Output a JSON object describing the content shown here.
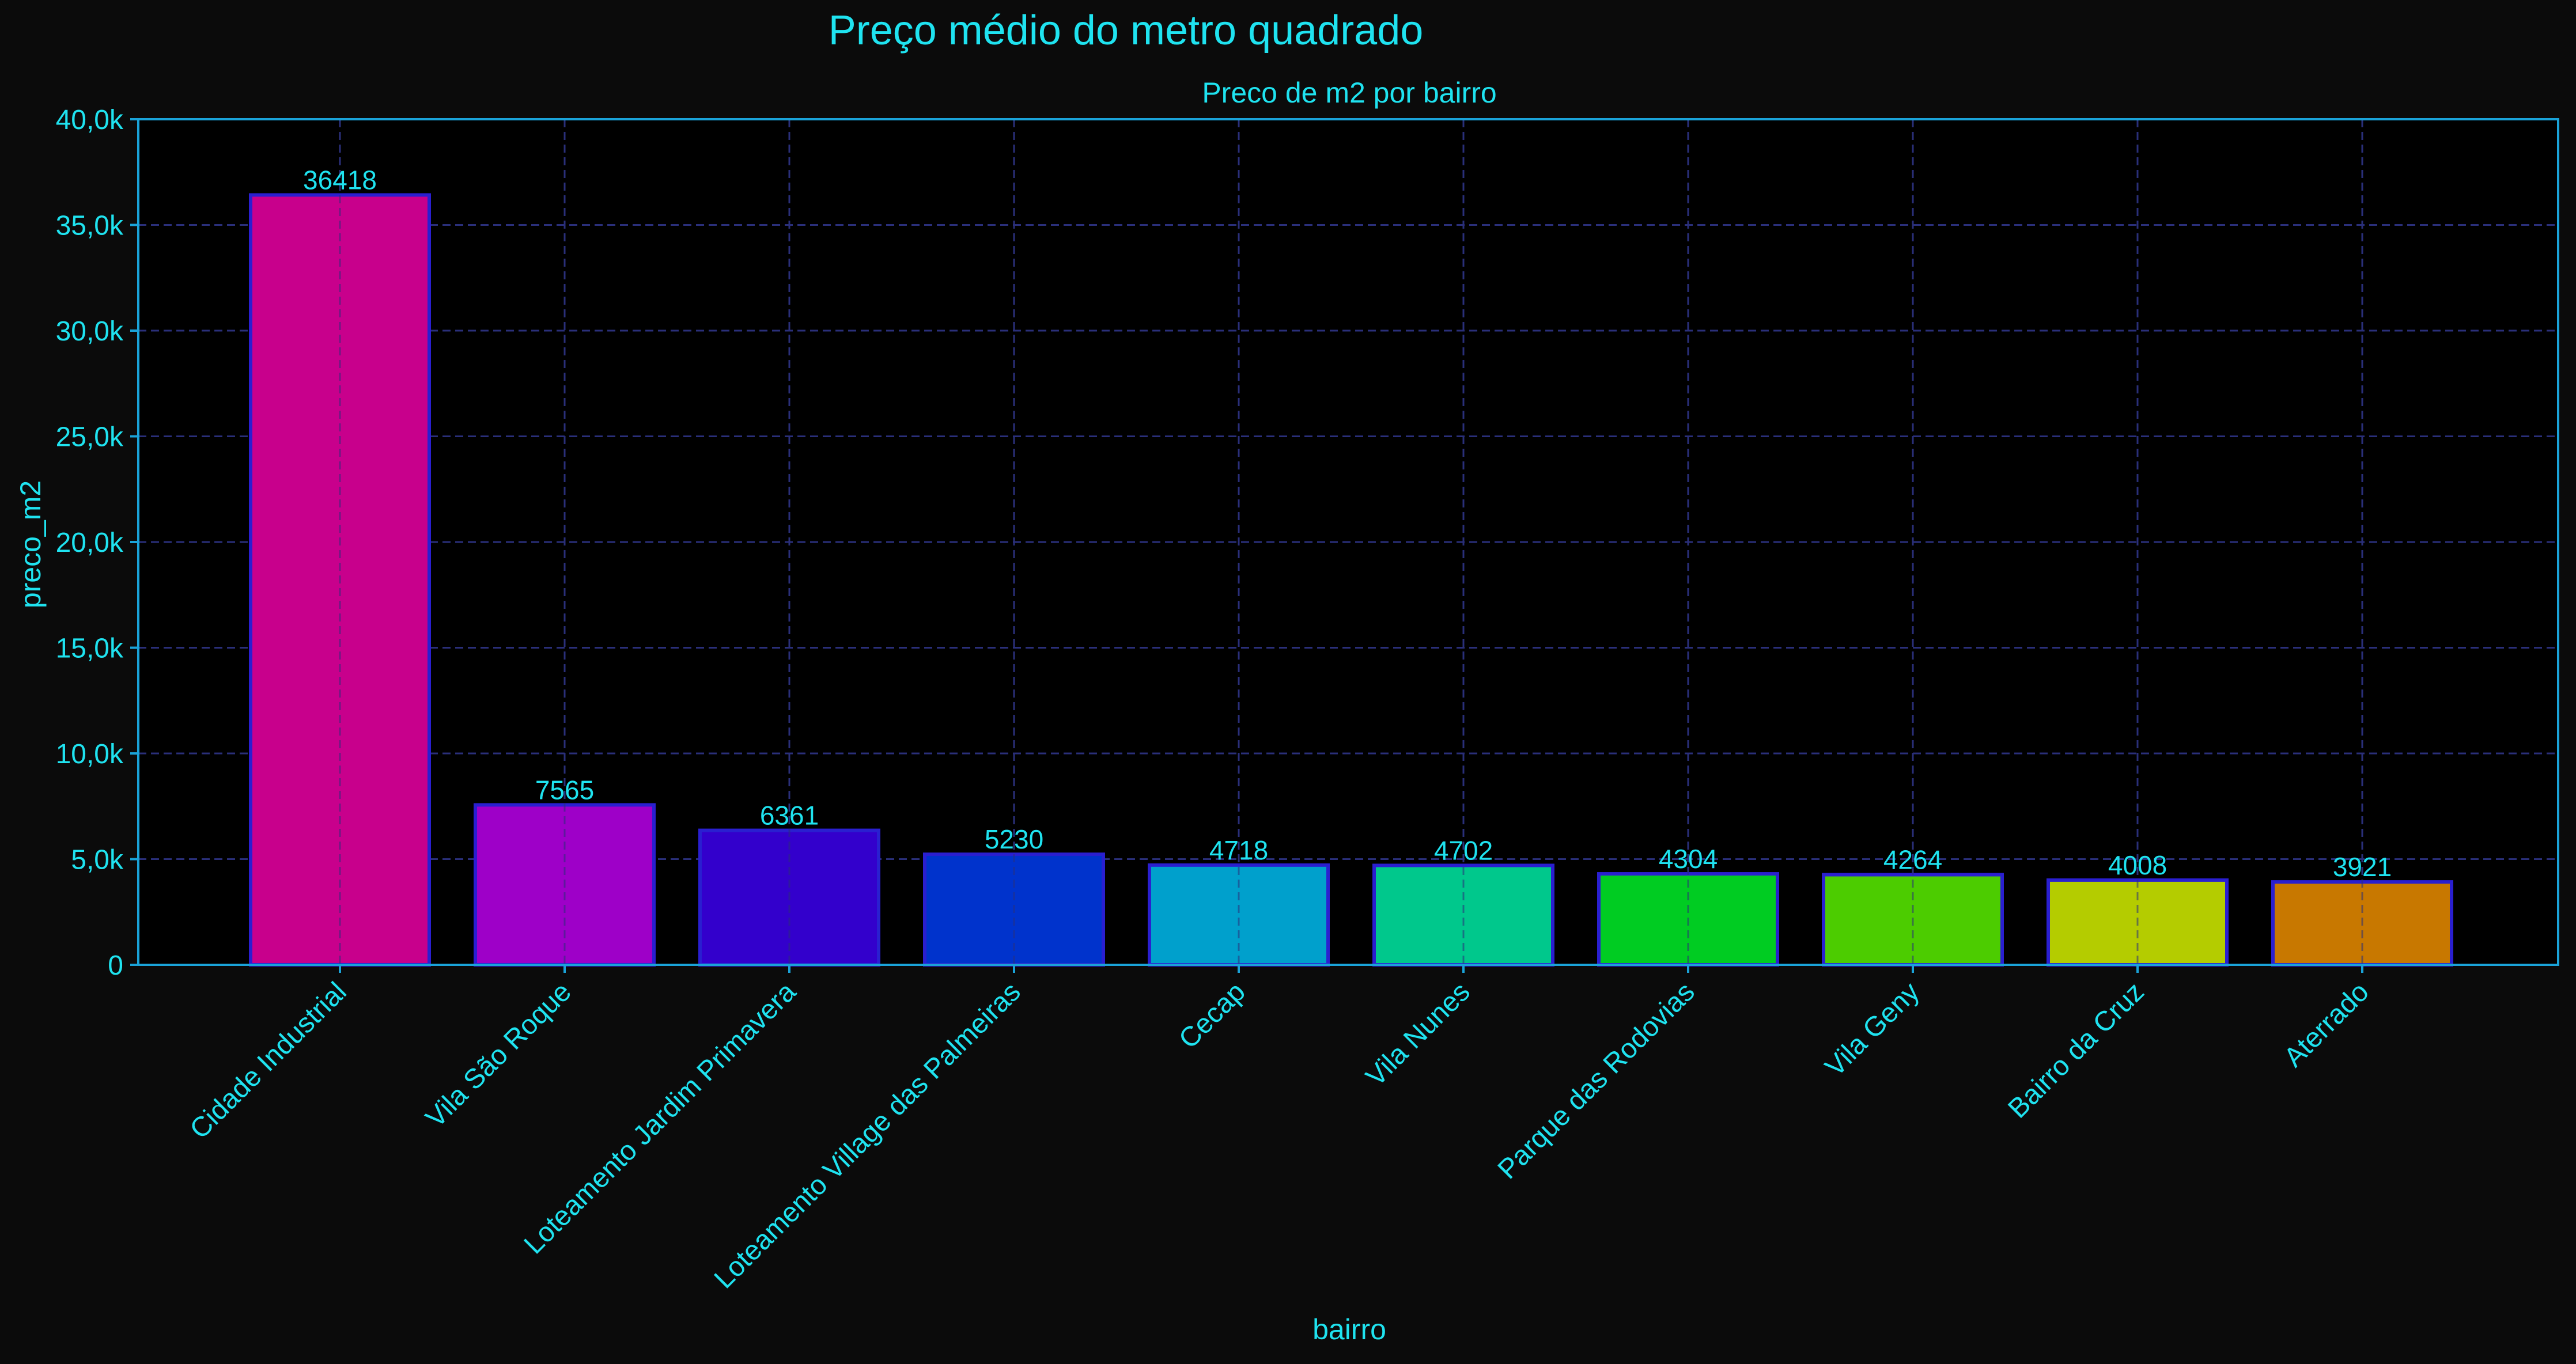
{
  "chart_data": {
    "type": "bar",
    "suptitle": "Preço médio do metro quadrado",
    "title": "Preco de m2 por bairro",
    "xlabel": "bairro",
    "ylabel": "preco_m2",
    "categories": [
      "Cidade Industrial",
      "Vila São Roque",
      "Loteamento Jardim Primavera",
      "Loteamento Village das Palmeiras",
      "Cecap",
      "Vila Nunes",
      "Parque das Rodovias",
      "Vila Geny",
      "Bairro da Cruz",
      "Aterrado"
    ],
    "values": [
      36418,
      7565,
      6361,
      5230,
      4718,
      4702,
      4304,
      4264,
      4008,
      3921
    ],
    "data_labels": [
      "36418",
      "7565",
      "6361",
      "5230",
      "4718",
      "4702",
      "4304",
      "4264",
      "4008",
      "3921"
    ],
    "bar_colors": [
      "#c8008c",
      "#9e00c8",
      "#3300cc",
      "#0033cc",
      "#00a0cc",
      "#00c88c",
      "#00cc22",
      "#4ccc00",
      "#b4cc00",
      "#c87800"
    ],
    "ylim": [
      0,
      40000
    ],
    "yticks": [
      0,
      5000,
      10000,
      15000,
      20000,
      25000,
      30000,
      35000,
      40000
    ],
    "ytick_labels": [
      "0",
      "5,0k",
      "10,0k",
      "15,0k",
      "20,0k",
      "25,0k",
      "30,0k",
      "35,0k",
      "40,0k"
    ],
    "grid": true,
    "colors": {
      "background": "#0b0b0b",
      "plot_background": "#000000",
      "text": "#1fe3f0",
      "axis": "#1aa3d9",
      "grid": "#2a2f7a",
      "bar_edge": "#2a1fd0"
    }
  }
}
